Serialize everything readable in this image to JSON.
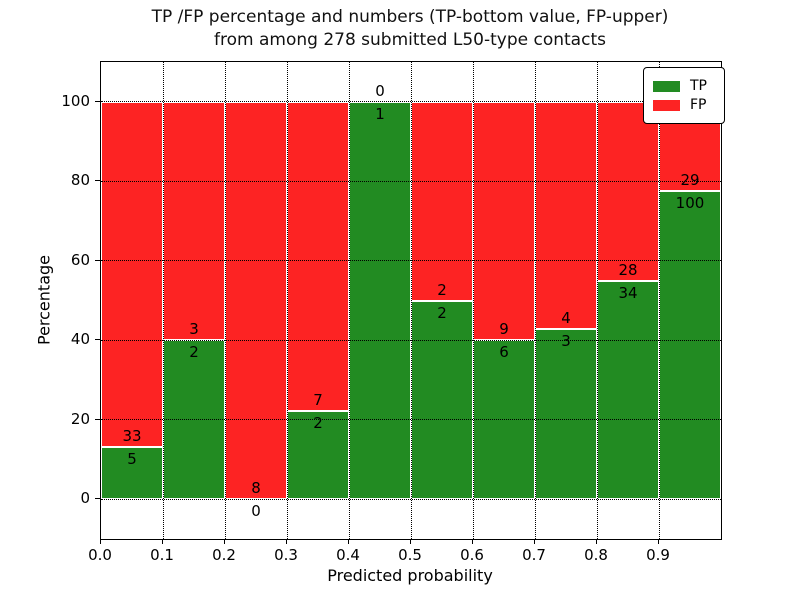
{
  "chart_data": {
    "type": "bar",
    "stacked": true,
    "title": "TP /FP percentage and numbers (TP-bottom value, FP-upper) from among 278 submitted L50-type contacts",
    "title_lines": [
      "TP /FP percentage and numbers (TP-bottom value, FP-upper)",
      "from among 278 submitted L50-type contacts"
    ],
    "xlabel": "Predicted probability",
    "ylabel": "Percentage",
    "total_contacts": 278,
    "xlim": [
      0.0,
      1.0
    ],
    "ylim": [
      -10,
      110
    ],
    "xticks": [
      "0.0",
      "0.1",
      "0.2",
      "0.3",
      "0.4",
      "0.5",
      "0.6",
      "0.7",
      "0.8",
      "0.9"
    ],
    "yticks": [
      0,
      20,
      40,
      60,
      80,
      100
    ],
    "grid": true,
    "grid_style": "dotted-black",
    "bin_width": 0.1,
    "categories": [
      "0.0-0.1",
      "0.1-0.2",
      "0.2-0.3",
      "0.3-0.4",
      "0.4-0.5",
      "0.5-0.6",
      "0.6-0.7",
      "0.7-0.8",
      "0.8-0.9",
      "0.9-1.0"
    ],
    "annotation_rule": "FP count printed just above each TP/FP boundary, TP count just below",
    "legend_position": "upper right",
    "series": [
      {
        "name": "TP",
        "color": "#228b22",
        "counts": [
          5,
          2,
          0,
          2,
          1,
          2,
          6,
          3,
          34,
          100
        ],
        "percentages": [
          13.16,
          40.0,
          0.0,
          22.22,
          100.0,
          50.0,
          40.0,
          42.86,
          54.84,
          77.52
        ]
      },
      {
        "name": "FP",
        "color": "#fd2323",
        "counts": [
          33,
          3,
          8,
          7,
          0,
          2,
          9,
          4,
          28,
          29
        ],
        "percentages": [
          86.84,
          60.0,
          100.0,
          77.78,
          0.0,
          50.0,
          60.0,
          57.14,
          45.16,
          22.48
        ]
      }
    ]
  }
}
